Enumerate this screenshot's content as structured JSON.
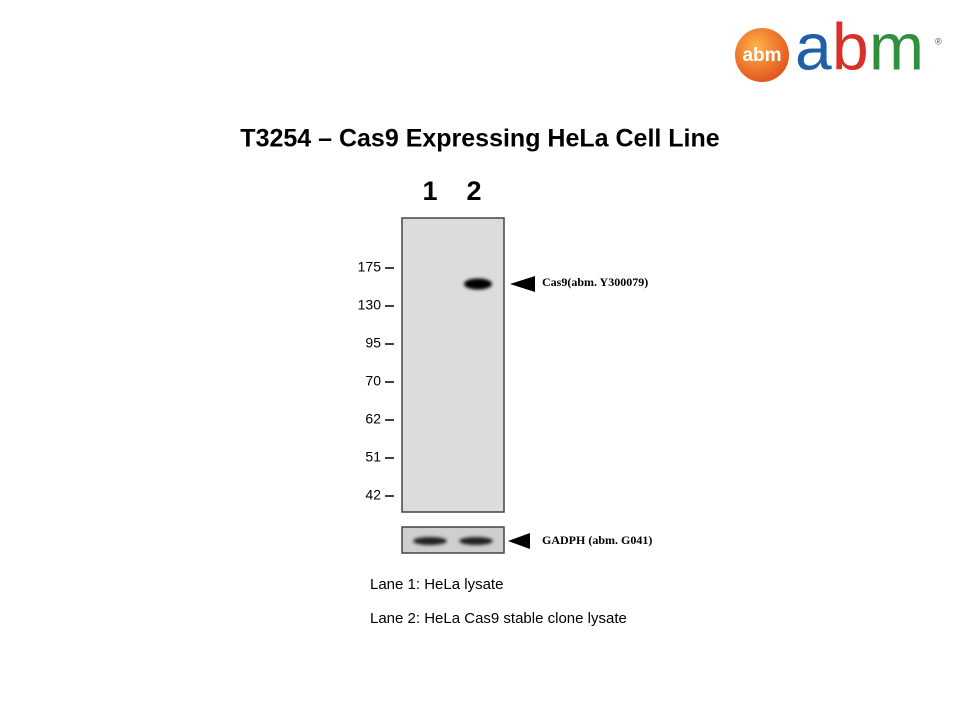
{
  "logo": {
    "badge": "abm",
    "letters": [
      "a",
      "b",
      "m"
    ],
    "mark": "®"
  },
  "title": "T3254 – Cas9 Expressing HeLa Cell Line",
  "lanes": [
    "1",
    "2"
  ],
  "markers": [
    "175",
    "130",
    "95",
    "70",
    "62",
    "51",
    "42"
  ],
  "bands": {
    "main": "Cas9(abm. Y300079)",
    "loading": "GADPH (abm. G041)"
  },
  "legend": [
    "Lane 1: HeLa lysate",
    "Lane 2: HeLa Cas9 stable clone lysate"
  ]
}
